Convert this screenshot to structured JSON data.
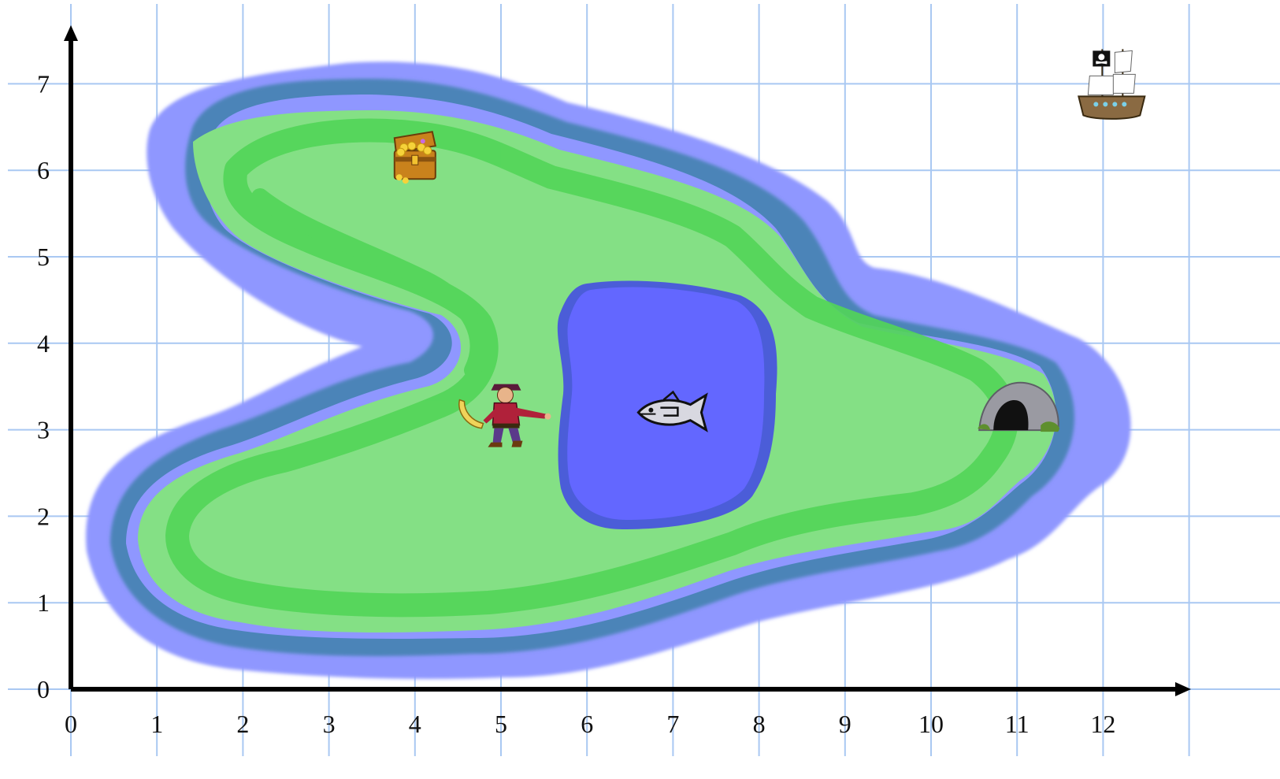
{
  "map": {
    "x_ticks": [
      "0",
      "1",
      "2",
      "3",
      "4",
      "5",
      "6",
      "7",
      "8",
      "9",
      "10",
      "11",
      "12"
    ],
    "y_ticks": [
      "0",
      "1",
      "2",
      "3",
      "4",
      "5",
      "6",
      "7"
    ],
    "colors": {
      "grid": "#a9c8f2",
      "deep_water": "#5b63ff",
      "shallow_water": "#8f97ff",
      "reef": "#4b84b8",
      "land": "#84e085",
      "land_band": "#52d558",
      "axis": "#000000"
    },
    "landmarks": [
      {
        "name": "treasure-chest",
        "x": 4,
        "y": 6.1
      },
      {
        "name": "pirate",
        "x": 5.05,
        "y": 3.2
      },
      {
        "name": "fish",
        "x": 7,
        "y": 3.2
      },
      {
        "name": "cave",
        "x": 11,
        "y": 3.25
      },
      {
        "name": "pirate-ship",
        "x": 12.1,
        "y": 7
      }
    ]
  }
}
